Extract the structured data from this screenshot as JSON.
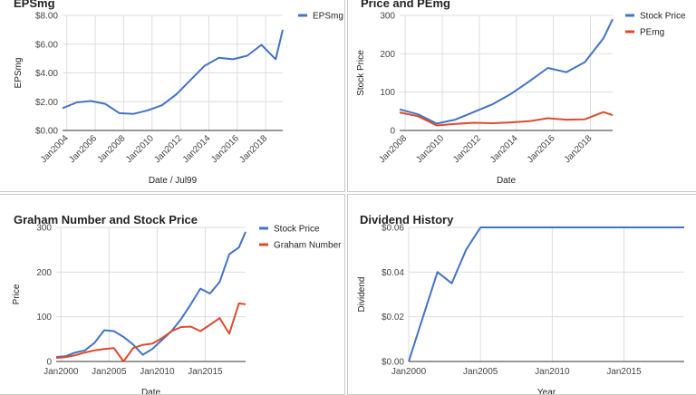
{
  "colors": {
    "blue": "#4472c4",
    "red": "#dc4a2e",
    "grid": "#dddddd",
    "axis": "#333333"
  },
  "chart_data": [
    {
      "type": "line",
      "title": "EPSmg",
      "xlabel": "Date / Jul99",
      "ylabel": "EPSmg",
      "xlim": [
        2003.7,
        2019.2
      ],
      "ylim": [
        0,
        8
      ],
      "yticks": [
        0,
        2,
        4,
        6,
        8
      ],
      "ytick_labels": [
        "$0.00",
        "$2.00",
        "$4.00",
        "$6.00",
        "$8.00"
      ],
      "xticks": [
        2004,
        2006,
        2008,
        2010,
        2012,
        2014,
        2016,
        2018
      ],
      "xtick_labels": [
        "Jan2004",
        "Jan2006",
        "Jan2008",
        "Jan2010",
        "Jan2012",
        "Jan2014",
        "Jan2016",
        "Jan2018"
      ],
      "legend_position": "top-right",
      "grid": true,
      "series": [
        {
          "name": "EPSmg",
          "color": "#4472c4",
          "x": [
            2003.7,
            2004.7,
            2005.7,
            2006.7,
            2007.7,
            2008.7,
            2009.7,
            2010.7,
            2011.7,
            2012.7,
            2013.7,
            2014.7,
            2015.7,
            2016.7,
            2017.7,
            2018.7,
            2019.2
          ],
          "y": [
            1.55,
            1.95,
            2.05,
            1.85,
            1.2,
            1.15,
            1.4,
            1.75,
            2.5,
            3.5,
            4.5,
            5.05,
            4.95,
            5.2,
            5.95,
            4.95,
            7.0
          ]
        }
      ]
    },
    {
      "type": "line",
      "title": "Price and PEmg",
      "xlabel": "Date",
      "ylabel": "Stock Price",
      "xlim": [
        2007.7,
        2019.2
      ],
      "ylim": [
        0,
        300
      ],
      "yticks": [
        0,
        100,
        200,
        300
      ],
      "ytick_labels": [
        "0",
        "100",
        "200",
        "300"
      ],
      "xticks": [
        2008,
        2010,
        2012,
        2014,
        2016,
        2018
      ],
      "xtick_labels": [
        "Jan2008",
        "Jan2010",
        "Jan2012",
        "Jan2014",
        "Jan2016",
        "Jan2018"
      ],
      "legend_position": "top-right",
      "grid": true,
      "series": [
        {
          "name": "Stock Price",
          "color": "#4472c4",
          "x": [
            2007.7,
            2008.7,
            2009.7,
            2010.7,
            2011.7,
            2012.7,
            2013.7,
            2014.7,
            2015.7,
            2016.7,
            2017.7,
            2018.7,
            2019.2
          ],
          "y": [
            55,
            42,
            18,
            28,
            48,
            68,
            95,
            128,
            163,
            152,
            178,
            240,
            290
          ]
        },
        {
          "name": "PEmg",
          "color": "#dc4a2e",
          "x": [
            2007.7,
            2008.7,
            2009.7,
            2010.7,
            2011.7,
            2012.7,
            2013.7,
            2014.7,
            2015.7,
            2016.7,
            2017.7,
            2018.7,
            2019.2
          ],
          "y": [
            47,
            37,
            13,
            17,
            20,
            19,
            21,
            24,
            32,
            28,
            29,
            48,
            40
          ]
        }
      ]
    },
    {
      "type": "line",
      "title": "Graham Number and Stock Price",
      "xlabel": "Date",
      "ylabel": "Price",
      "xlim": [
        1999.5,
        2019.2
      ],
      "ylim": [
        0,
        300
      ],
      "yticks": [
        0,
        100,
        200,
        300
      ],
      "ytick_labels": [
        "0",
        "100",
        "200",
        "300"
      ],
      "xticks": [
        2000,
        2005,
        2010,
        2015
      ],
      "xtick_labels": [
        "Jan2000",
        "Jan2005",
        "Jan2010",
        "Jan2015"
      ],
      "legend_position": "top-right",
      "grid": true,
      "series": [
        {
          "name": "Stock Price",
          "color": "#4472c4",
          "x": [
            1999.5,
            2000.5,
            2001.5,
            2002.5,
            2003.5,
            2004.5,
            2005.5,
            2006.5,
            2007.5,
            2008.5,
            2009.5,
            2010.5,
            2011.5,
            2012.5,
            2013.5,
            2014.5,
            2015.5,
            2016.5,
            2017.5,
            2018.5,
            2019.2
          ],
          "y": [
            10,
            12,
            20,
            25,
            42,
            70,
            68,
            55,
            38,
            15,
            28,
            48,
            68,
            95,
            128,
            163,
            152,
            178,
            240,
            255,
            290
          ]
        },
        {
          "name": "Graham Number",
          "color": "#dc4a2e",
          "x": [
            1999.5,
            2000.5,
            2001.5,
            2002.5,
            2003.5,
            2004.5,
            2005.5,
            2006.5,
            2007.5,
            2008.5,
            2009.5,
            2010.5,
            2011.5,
            2012.5,
            2013.5,
            2014.5,
            2015.5,
            2016.5,
            2017.5,
            2018.5,
            2019.2
          ],
          "y": [
            8,
            10,
            14,
            20,
            25,
            28,
            30,
            0,
            30,
            37,
            40,
            52,
            68,
            77,
            78,
            68,
            82,
            97,
            62,
            130,
            128
          ]
        }
      ]
    },
    {
      "type": "line",
      "title": "Dividend History",
      "xlabel": "Year",
      "ylabel": "Dividend",
      "xlim": [
        2000,
        2019.2
      ],
      "ylim": [
        0,
        0.06
      ],
      "yticks": [
        0,
        0.02,
        0.04,
        0.06
      ],
      "ytick_labels": [
        "$0.00",
        "$0.02",
        "$0.04",
        "$0.06"
      ],
      "xticks": [
        2000,
        2005,
        2010,
        2015
      ],
      "xtick_labels": [
        "Jan2000",
        "Jan2005",
        "Jan2010",
        "Jan2015"
      ],
      "grid": true,
      "series": [
        {
          "color": "#4472c4",
          "x": [
            2000,
            2001,
            2002,
            2003,
            2004,
            2005,
            2019.2
          ],
          "y": [
            0,
            0.02,
            0.04,
            0.035,
            0.05,
            0.06,
            0.06
          ]
        }
      ]
    }
  ]
}
